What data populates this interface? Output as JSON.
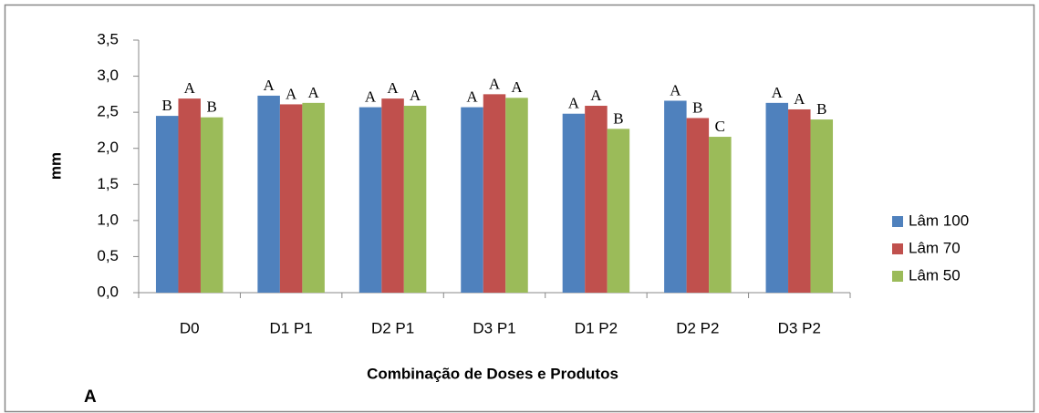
{
  "chart_data": {
    "type": "bar",
    "y_label": "mm",
    "x_label": "Combinação de Doses e Produtos",
    "panel_label": "A",
    "categories": [
      "D0",
      "D1 P1",
      "D2 P1",
      "D3 P1",
      "D1 P2",
      "D2 P2",
      "D3 P2"
    ],
    "series": [
      {
        "name": "Lâm 100",
        "color": "#4f81bd",
        "values": [
          2.45,
          2.73,
          2.57,
          2.57,
          2.48,
          2.66,
          2.63
        ],
        "annotations": [
          "B",
          "A",
          "A",
          "A",
          "A",
          "A",
          "A"
        ]
      },
      {
        "name": "Lâm 70",
        "color": "#c0504d",
        "values": [
          2.69,
          2.61,
          2.69,
          2.75,
          2.59,
          2.42,
          2.54
        ],
        "annotations": [
          "A",
          "A",
          "A",
          "A",
          "A",
          "B",
          "A"
        ]
      },
      {
        "name": "Lâm 50",
        "color": "#9bbb59",
        "values": [
          2.43,
          2.63,
          2.59,
          2.7,
          2.27,
          2.16,
          2.4
        ],
        "annotations": [
          "B",
          "A",
          "A",
          "A",
          "B",
          "C",
          "B"
        ]
      }
    ],
    "ylim": [
      0,
      3.5
    ],
    "yticks": [
      {
        "value": 0,
        "label": "0,0"
      },
      {
        "value": 0.5,
        "label": "0,5"
      },
      {
        "value": 1,
        "label": "1,0"
      },
      {
        "value": 1.5,
        "label": "1,5"
      },
      {
        "value": 2,
        "label": "2,0"
      },
      {
        "value": 2.5,
        "label": "2,5"
      },
      {
        "value": 3,
        "label": "3,0"
      },
      {
        "value": 3.5,
        "label": "3,5"
      }
    ],
    "grid": false,
    "legend": "right"
  }
}
